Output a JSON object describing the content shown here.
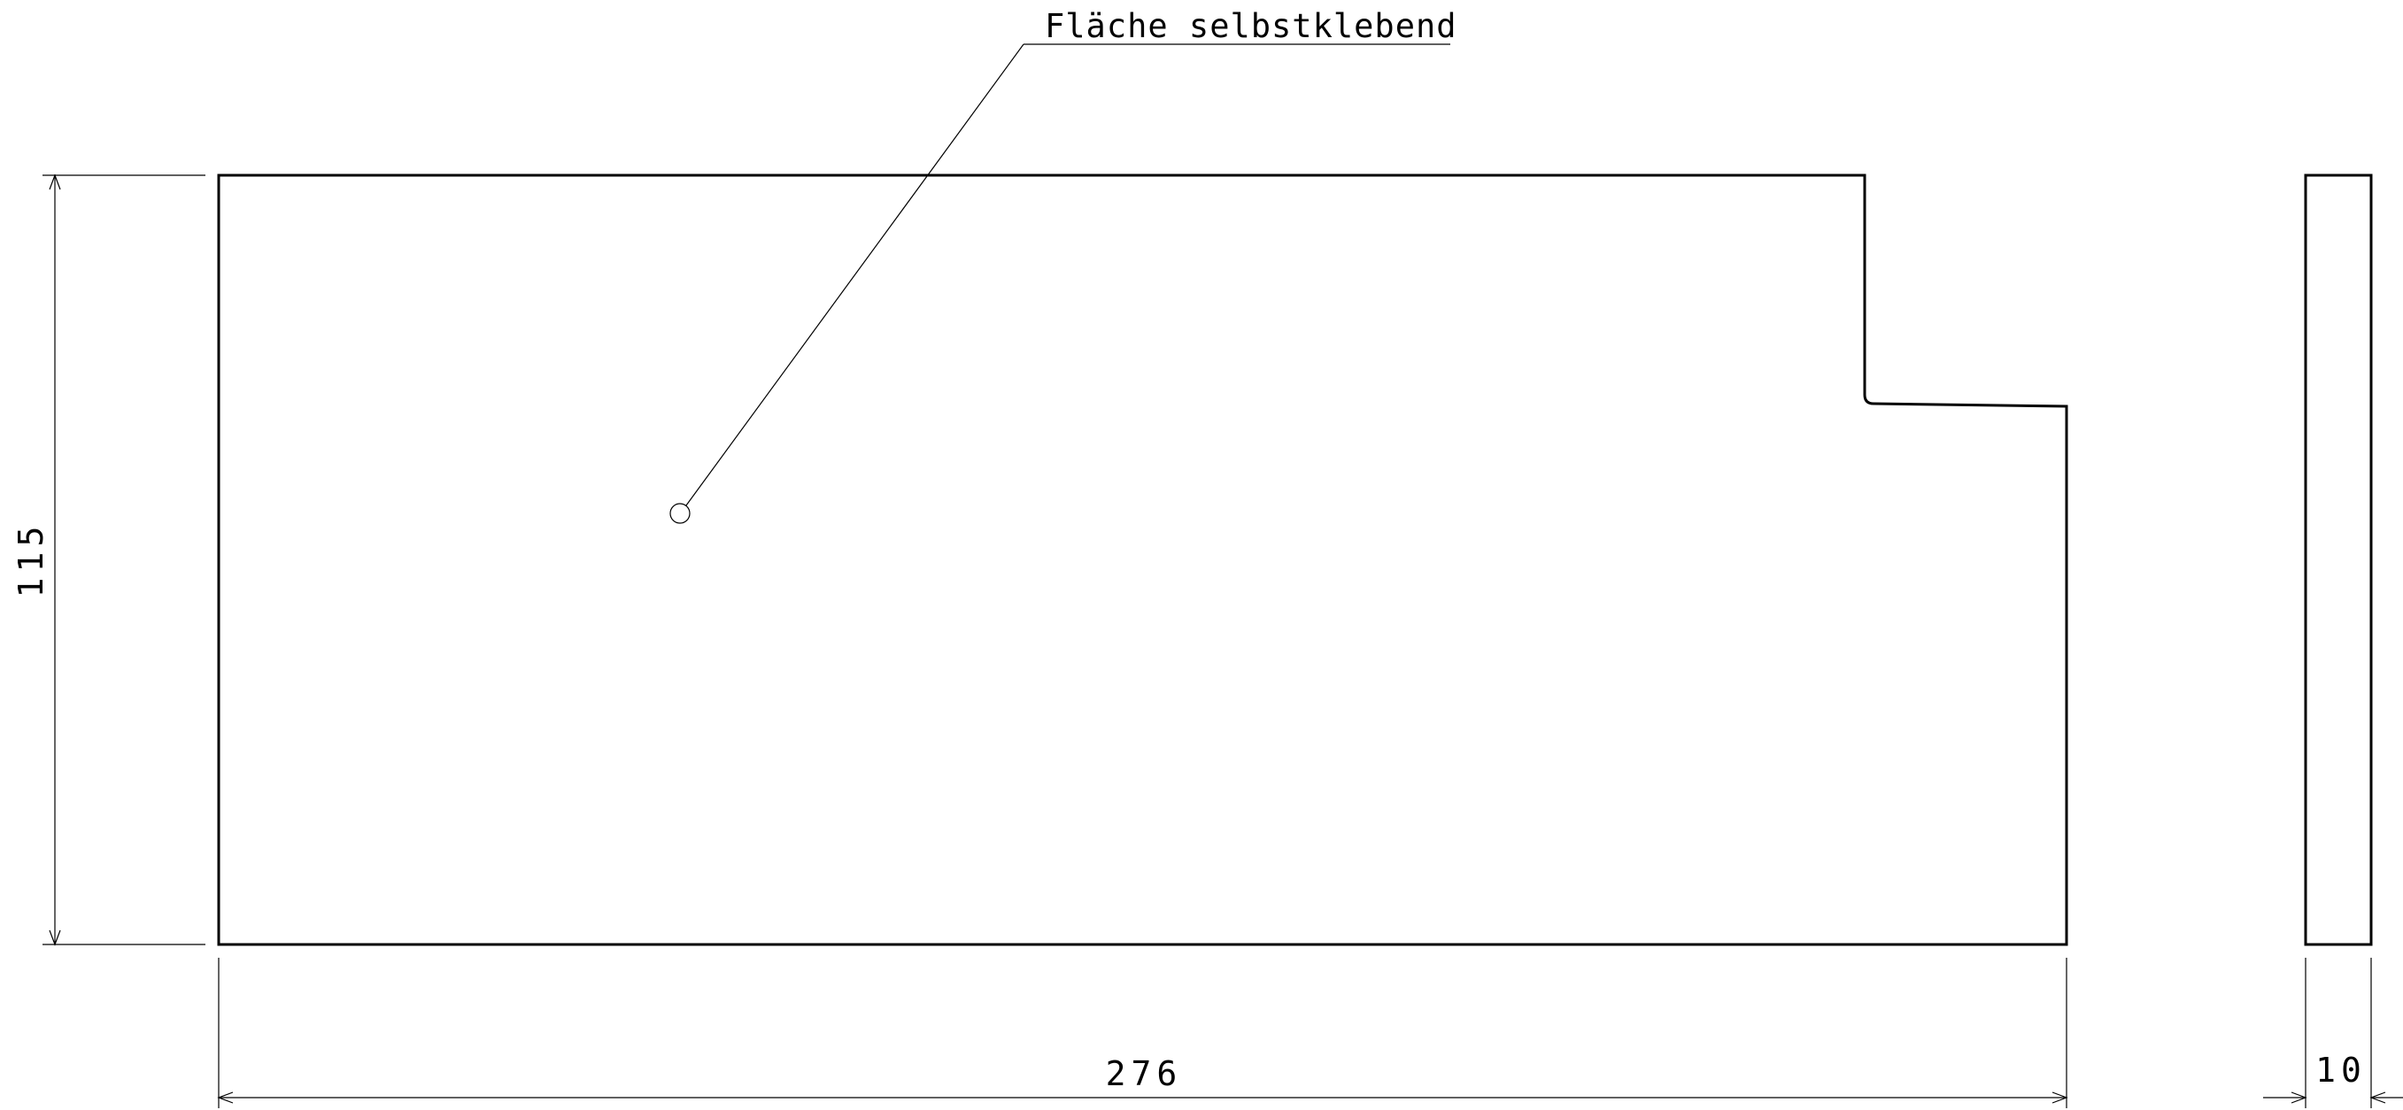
{
  "part": {
    "dimensions": {
      "length": "276",
      "height": "115",
      "thickness": "10"
    },
    "callout": {
      "label": "Fläche selbstklebend"
    }
  }
}
